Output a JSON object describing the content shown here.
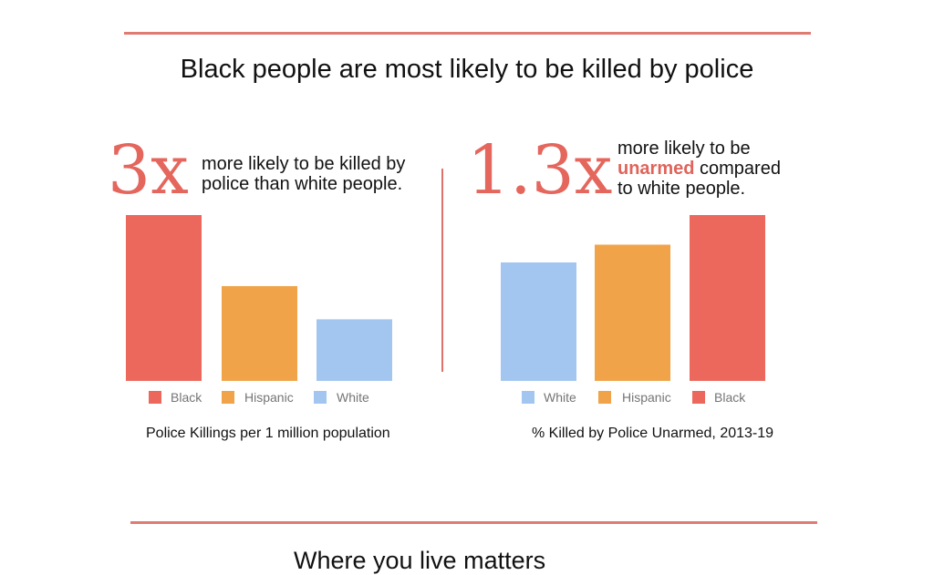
{
  "header": {
    "title": "Black people are most likely to be killed by police"
  },
  "footer": {
    "title": "Where you live matters"
  },
  "left_panel": {
    "stat": "3x",
    "text_line1": "more likely to be killed by",
    "text_line2": "police than white people."
  },
  "right_panel": {
    "stat": "1.3x",
    "text_line1": "more likely to be",
    "text_highlight": "unarmed",
    "text_line2_rest": " compared",
    "text_line3": "to white people."
  },
  "colors": {
    "Black": "#ec685c",
    "Hispanic": "#f0a348",
    "White": "#a3c6f0",
    "accent": "#e4665c",
    "rule": "#e07b72"
  },
  "chart_data": [
    {
      "type": "bar",
      "title": "Police Killings per 1 million population",
      "categories": [
        "Black",
        "Hispanic",
        "White"
      ],
      "values": [
        7.0,
        4.0,
        2.6
      ],
      "ylim": [
        0,
        7.0
      ],
      "legend": [
        "Black",
        "Hispanic",
        "White"
      ],
      "legend_placement": "bottom",
      "grid": false,
      "xlabel": "",
      "ylabel": ""
    },
    {
      "type": "bar",
      "title": "% Killed by Police Unarmed, 2013-19",
      "categories": [
        "White",
        "Hispanic",
        "Black"
      ],
      "values": [
        10.0,
        11.5,
        14.0
      ],
      "ylim": [
        0,
        14.0
      ],
      "legend": [
        "White",
        "Hispanic",
        "Black"
      ],
      "legend_placement": "bottom",
      "grid": false,
      "xlabel": "",
      "ylabel": ""
    }
  ]
}
